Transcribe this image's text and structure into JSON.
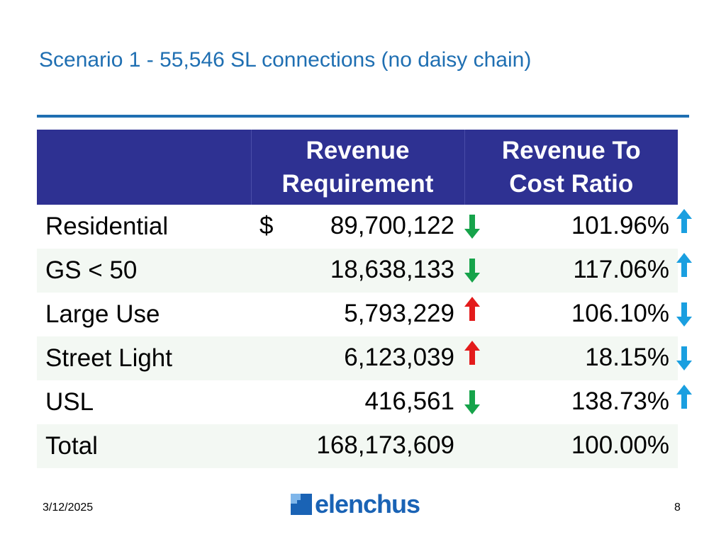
{
  "slide": {
    "title": "Scenario 1 - 55,546 SL connections (no daisy chain)",
    "date": "3/12/2025",
    "page_number": "8",
    "logo_text": "elenchus"
  },
  "colors": {
    "title": "#1f6fb2",
    "header_bg": "#2e3192",
    "arrow_green": "#16a34a",
    "arrow_red": "#e31b1b",
    "arrow_blue": "#1a9fe0"
  },
  "table": {
    "headers": [
      "",
      "Revenue\nRequirement",
      "Revenue To\nCost Ratio"
    ],
    "header_lines": {
      "revenue_1": "Revenue",
      "revenue_2": "Requirement",
      "ratio_1": "Revenue To",
      "ratio_2": "Cost Ratio"
    },
    "rows": [
      {
        "label": "Residential",
        "currency": "$",
        "revenue": "89,700,122",
        "rev_arrow": "down-green",
        "ratio": "101.96%",
        "ratio_arrow": "up-blue"
      },
      {
        "label": "GS < 50",
        "currency": "",
        "revenue": "18,638,133",
        "rev_arrow": "down-green",
        "ratio": "117.06%",
        "ratio_arrow": "up-blue"
      },
      {
        "label": "Large Use",
        "currency": "",
        "revenue": "5,793,229",
        "rev_arrow": "up-red",
        "ratio": "106.10%",
        "ratio_arrow": "down-blue"
      },
      {
        "label": "Street Light",
        "currency": "",
        "revenue": "6,123,039",
        "rev_arrow": "up-red",
        "ratio": "18.15%",
        "ratio_arrow": "down-blue"
      },
      {
        "label": "USL",
        "currency": "",
        "revenue": "416,561",
        "rev_arrow": "down-green",
        "ratio": "138.73%",
        "ratio_arrow": "up-blue"
      },
      {
        "label": "Total",
        "currency": "",
        "revenue": "168,173,609",
        "rev_arrow": "",
        "ratio": "100.00%",
        "ratio_arrow": ""
      }
    ]
  }
}
